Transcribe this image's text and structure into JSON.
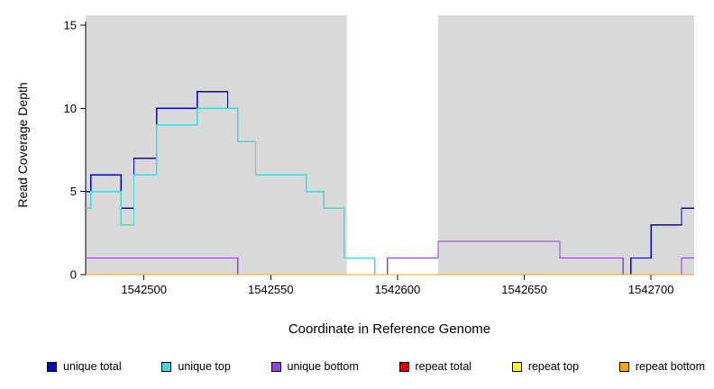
{
  "chart_data": {
    "type": "line",
    "step": true,
    "title": "",
    "xlabel": "Coordinate in Reference Genome",
    "ylabel": "Read Coverage Depth",
    "xlim": [
      1542477,
      1542717
    ],
    "ylim": [
      0,
      15.6
    ],
    "xticks": [
      1542500,
      1542550,
      1542600,
      1542650,
      1542700
    ],
    "yticks": [
      0,
      5,
      10,
      15
    ],
    "grid": false,
    "plot_bg": "#D9D9D9",
    "masked_region": {
      "start": 1542580,
      "end": 1542616,
      "color": "#FFFFFF"
    },
    "legend_position": "bottom",
    "series": [
      {
        "name": "unique total",
        "color": "#0000E0",
        "points": [
          [
            1542477,
            5
          ],
          [
            1542479,
            6
          ],
          [
            1542491,
            4
          ],
          [
            1542496,
            7
          ],
          [
            1542505,
            10
          ],
          [
            1542521,
            11
          ],
          [
            1542533,
            10
          ],
          [
            1542537,
            8
          ],
          [
            1542544,
            6
          ],
          [
            1542564,
            5
          ],
          [
            1542571,
            4
          ],
          [
            1542579,
            1
          ],
          [
            1542591,
            0
          ],
          [
            1542596,
            1
          ],
          [
            1542616,
            2
          ],
          [
            1542664,
            1
          ],
          [
            1542689,
            0
          ],
          [
            1542692,
            1
          ],
          [
            1542700,
            3
          ],
          [
            1542712,
            4
          ]
        ]
      },
      {
        "name": "unique top",
        "color": "#44D4DC",
        "points": [
          [
            1542477,
            4
          ],
          [
            1542479,
            5
          ],
          [
            1542491,
            3
          ],
          [
            1542496,
            6
          ],
          [
            1542505,
            9
          ],
          [
            1542521,
            10
          ],
          [
            1542537,
            8
          ],
          [
            1542544,
            6
          ],
          [
            1542564,
            5
          ],
          [
            1542571,
            4
          ],
          [
            1542579,
            1
          ],
          [
            1542591,
            0
          ]
        ]
      },
      {
        "name": "unique bottom",
        "color": "#8E44E0",
        "points": [
          [
            1542477,
            1
          ],
          [
            1542537,
            0
          ],
          [
            1542596,
            1
          ],
          [
            1542616,
            2
          ],
          [
            1542664,
            1
          ],
          [
            1542689,
            0
          ],
          [
            1542712,
            1
          ]
        ]
      },
      {
        "name": "repeat total",
        "color": "#DD0000",
        "points": [
          [
            1542477,
            0
          ]
        ]
      },
      {
        "name": "repeat top",
        "color": "#FFFF00",
        "points": [
          [
            1542477,
            0
          ]
        ]
      },
      {
        "name": "repeat bottom",
        "color": "#FFA500",
        "points": [
          [
            1542477,
            0
          ]
        ]
      }
    ]
  }
}
